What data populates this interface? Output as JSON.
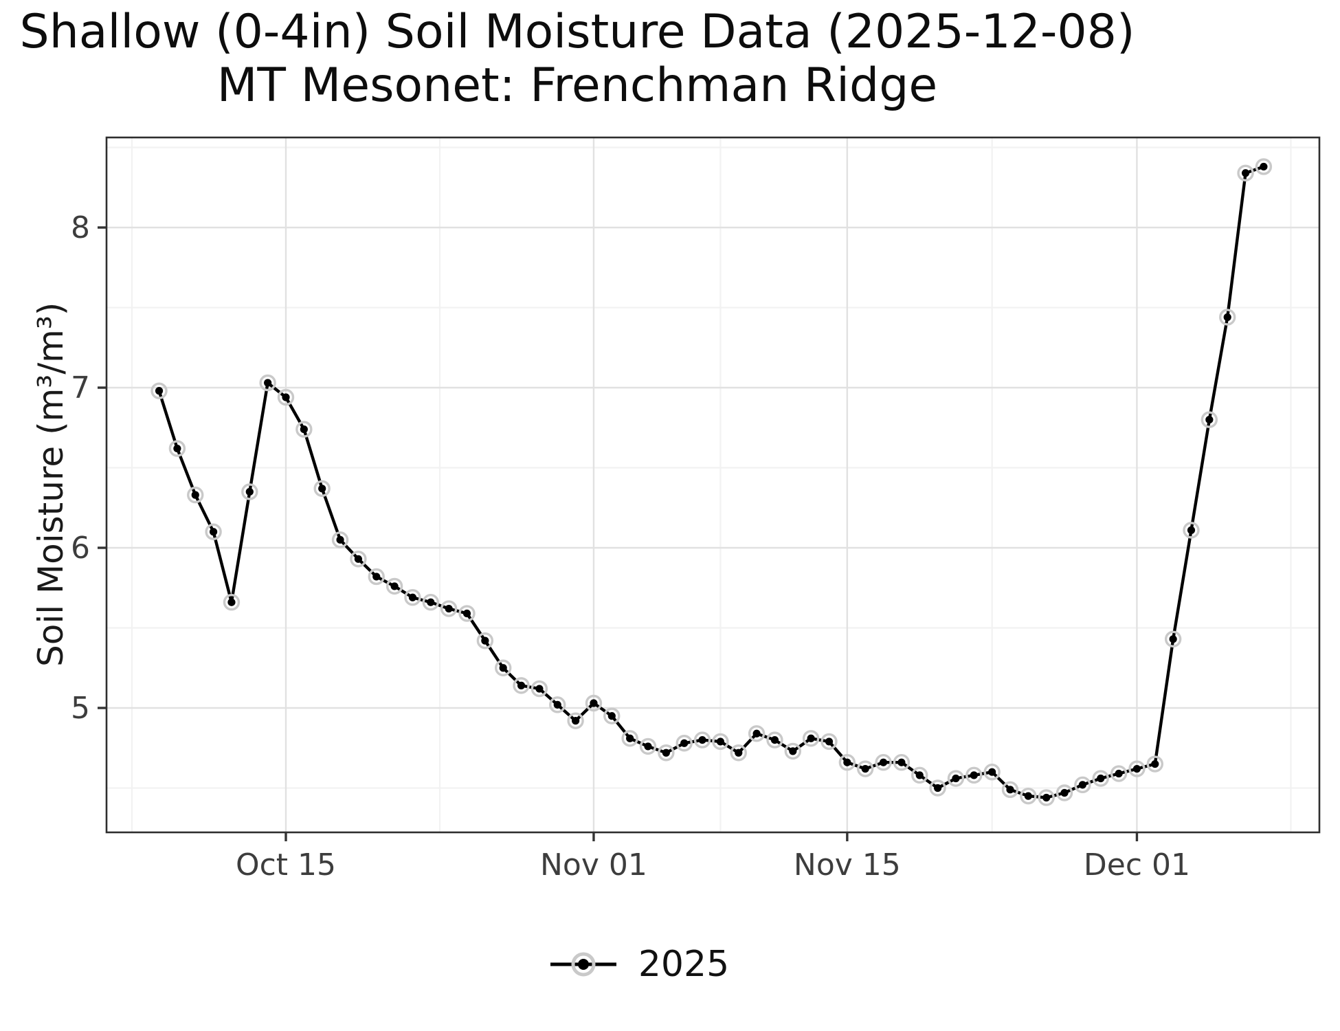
{
  "title": {
    "line1": "Shallow (0-4in) Soil Moisture Data (2025-12-08)",
    "line2": "MT Mesonet: Frenchman Ridge"
  },
  "axes": {
    "y_label": "Soil Moisture (m³/m³)",
    "y_tick_labels": [
      "5",
      "6",
      "7",
      "8"
    ],
    "y_tick_values": [
      5,
      6,
      7,
      8
    ],
    "y_minor_values": [
      4.5,
      5.5,
      6.5,
      7.5,
      8.5
    ],
    "x_tick_labels": [
      "Oct 15",
      "Nov 01",
      "Nov 15",
      "Dec 01"
    ],
    "x_tick_days": [
      0,
      17,
      31,
      47
    ],
    "x_minor_days": [
      -8.5,
      8.5,
      24,
      39,
      55.5
    ]
  },
  "legend": {
    "label": "2025",
    "position": "bottom"
  },
  "colors": {
    "line": "#000000",
    "marker": "#000000",
    "marker_halo": "#c9c9c9",
    "grid_major": "#e1e1e1",
    "grid_minor": "#f2f2f2",
    "panel_border": "#2e2e2e",
    "tick_mark": "#333333",
    "tick_text": "#3d3d3d",
    "title_text": "#0d0d0d",
    "background": "#ffffff"
  },
  "chart_data": {
    "type": "line",
    "title": "Shallow (0-4in) Soil Moisture Data (2025-12-08) — MT Mesonet: Frenchman Ridge",
    "xlabel": "",
    "ylabel": "Soil Moisture (m³/m³)",
    "ylim": [
      4.2,
      8.6
    ],
    "grid": true,
    "legend_position": "bottom",
    "x_tick_labels": [
      "Oct 15",
      "Nov 01",
      "Nov 15",
      "Dec 01"
    ],
    "series": [
      {
        "name": "2025",
        "points": [
          {
            "date": "Oct 08",
            "day": -7,
            "value": 6.98
          },
          {
            "date": "Oct 09",
            "day": -6,
            "value": 6.62
          },
          {
            "date": "Oct 10",
            "day": -5,
            "value": 6.33
          },
          {
            "date": "Oct 11",
            "day": -4,
            "value": 6.1
          },
          {
            "date": "Oct 12",
            "day": -3,
            "value": 5.66
          },
          {
            "date": "Oct 13",
            "day": -2,
            "value": 6.35
          },
          {
            "date": "Oct 14",
            "day": -1,
            "value": 7.03
          },
          {
            "date": "Oct 15",
            "day": 0,
            "value": 6.94
          },
          {
            "date": "Oct 16",
            "day": 1,
            "value": 6.74
          },
          {
            "date": "Oct 17",
            "day": 2,
            "value": 6.37
          },
          {
            "date": "Oct 18",
            "day": 3,
            "value": 6.05
          },
          {
            "date": "Oct 19",
            "day": 4,
            "value": 5.93
          },
          {
            "date": "Oct 20",
            "day": 5,
            "value": 5.82
          },
          {
            "date": "Oct 21",
            "day": 6,
            "value": 5.76
          },
          {
            "date": "Oct 22",
            "day": 7,
            "value": 5.69
          },
          {
            "date": "Oct 23",
            "day": 8,
            "value": 5.66
          },
          {
            "date": "Oct 24",
            "day": 9,
            "value": 5.62
          },
          {
            "date": "Oct 25",
            "day": 10,
            "value": 5.59
          },
          {
            "date": "Oct 26",
            "day": 11,
            "value": 5.42
          },
          {
            "date": "Oct 27",
            "day": 12,
            "value": 5.25
          },
          {
            "date": "Oct 28",
            "day": 13,
            "value": 5.14
          },
          {
            "date": "Oct 29",
            "day": 14,
            "value": 5.12
          },
          {
            "date": "Oct 30",
            "day": 15,
            "value": 5.02
          },
          {
            "date": "Oct 31",
            "day": 16,
            "value": 4.92
          },
          {
            "date": "Nov 01",
            "day": 17,
            "value": 5.03
          },
          {
            "date": "Nov 02",
            "day": 18,
            "value": 4.95
          },
          {
            "date": "Nov 03",
            "day": 19,
            "value": 4.81
          },
          {
            "date": "Nov 04",
            "day": 20,
            "value": 4.76
          },
          {
            "date": "Nov 05",
            "day": 21,
            "value": 4.72
          },
          {
            "date": "Nov 06",
            "day": 22,
            "value": 4.78
          },
          {
            "date": "Nov 07",
            "day": 23,
            "value": 4.8
          },
          {
            "date": "Nov 08",
            "day": 24,
            "value": 4.79
          },
          {
            "date": "Nov 09",
            "day": 25,
            "value": 4.72
          },
          {
            "date": "Nov 10",
            "day": 26,
            "value": 4.84
          },
          {
            "date": "Nov 11",
            "day": 27,
            "value": 4.8
          },
          {
            "date": "Nov 12",
            "day": 28,
            "value": 4.73
          },
          {
            "date": "Nov 13",
            "day": 29,
            "value": 4.81
          },
          {
            "date": "Nov 14",
            "day": 30,
            "value": 4.79
          },
          {
            "date": "Nov 15",
            "day": 31,
            "value": 4.66
          },
          {
            "date": "Nov 16",
            "day": 32,
            "value": 4.62
          },
          {
            "date": "Nov 17",
            "day": 33,
            "value": 4.66
          },
          {
            "date": "Nov 18",
            "day": 34,
            "value": 4.66
          },
          {
            "date": "Nov 19",
            "day": 35,
            "value": 4.58
          },
          {
            "date": "Nov 20",
            "day": 36,
            "value": 4.5
          },
          {
            "date": "Nov 21",
            "day": 37,
            "value": 4.56
          },
          {
            "date": "Nov 22",
            "day": 38,
            "value": 4.58
          },
          {
            "date": "Nov 23",
            "day": 39,
            "value": 4.6
          },
          {
            "date": "Nov 24",
            "day": 40,
            "value": 4.49
          },
          {
            "date": "Nov 25",
            "day": 41,
            "value": 4.45
          },
          {
            "date": "Nov 26",
            "day": 42,
            "value": 4.44
          },
          {
            "date": "Nov 27",
            "day": 43,
            "value": 4.47
          },
          {
            "date": "Nov 28",
            "day": 44,
            "value": 4.52
          },
          {
            "date": "Nov 29",
            "day": 45,
            "value": 4.56
          },
          {
            "date": "Nov 30",
            "day": 46,
            "value": 4.59
          },
          {
            "date": "Dec 01",
            "day": 47,
            "value": 4.62
          },
          {
            "date": "Dec 02",
            "day": 48,
            "value": 4.65
          },
          {
            "date": "Dec 03",
            "day": 49,
            "value": 5.43
          },
          {
            "date": "Dec 04",
            "day": 50,
            "value": 6.11
          },
          {
            "date": "Dec 05",
            "day": 51,
            "value": 6.8
          },
          {
            "date": "Dec 06",
            "day": 52,
            "value": 7.44
          },
          {
            "date": "Dec 07",
            "day": 53,
            "value": 8.34
          },
          {
            "date": "Dec 08",
            "day": 54,
            "value": 8.38
          }
        ]
      }
    ]
  }
}
